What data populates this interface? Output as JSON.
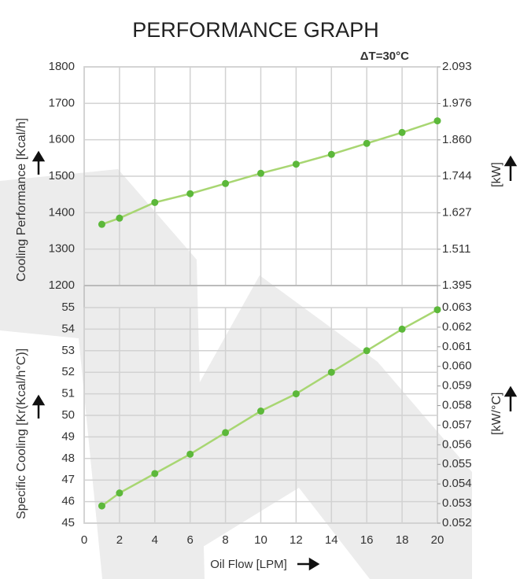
{
  "title": "PERFORMANCE GRAPH",
  "chart_data": [
    {
      "type": "line",
      "annotation": "ΔT=30°C",
      "ylabel": "Cooling Performance [Kcal/h]",
      "y2label": "[kW]",
      "x": [
        1,
        2,
        4,
        6,
        8,
        10,
        12,
        14,
        16,
        18,
        20
      ],
      "values": [
        1368,
        1385,
        1428,
        1452,
        1480,
        1508,
        1533,
        1560,
        1590,
        1620,
        1652
      ],
      "color": "#a8d672",
      "marker_color": "#5cb83a",
      "xlim": [
        0,
        20
      ],
      "xticks": [
        0,
        2,
        4,
        6,
        8,
        10,
        12,
        14,
        16,
        18,
        20
      ],
      "ylim": [
        1200,
        1800
      ],
      "yticks": [
        1200,
        1300,
        1400,
        1500,
        1600,
        1700,
        1800
      ],
      "y2lim": [
        1.395,
        2.093
      ],
      "y2ticks": [
        1.395,
        1.511,
        1.627,
        1.744,
        {
          "value": 1.86,
          "label": "1.860"
        },
        1.976,
        2.093
      ],
      "grid": true
    },
    {
      "type": "line",
      "ylabel": "Specific Cooling [Kr(Kcal/h°C)]",
      "y2label": "[kW/°C]",
      "xlabel": "Oil Flow [LPM]",
      "x": [
        1,
        2,
        4,
        6,
        8,
        10,
        12,
        14,
        16,
        18,
        20
      ],
      "values": [
        45.8,
        46.4,
        47.3,
        48.2,
        49.2,
        50.2,
        51.0,
        52.0,
        53.0,
        54.0,
        54.9
      ],
      "color": "#a8d672",
      "marker_color": "#5cb83a",
      "xlim": [
        0,
        20
      ],
      "xticks": [
        0,
        2,
        4,
        6,
        8,
        10,
        12,
        14,
        16,
        18,
        20
      ],
      "ylim": [
        45,
        55
      ],
      "yticks": [
        45,
        46,
        47,
        48,
        49,
        50,
        51,
        52,
        53,
        54,
        55
      ],
      "y2lim": [
        0.052,
        0.063
      ],
      "y2ticks": [
        0.052,
        0.053,
        0.054,
        0.055,
        0.056,
        0.057,
        0.058,
        0.059,
        {
          "value": 0.06,
          "label": "0.060"
        },
        0.061,
        0.062,
        0.063
      ],
      "grid": true
    }
  ]
}
